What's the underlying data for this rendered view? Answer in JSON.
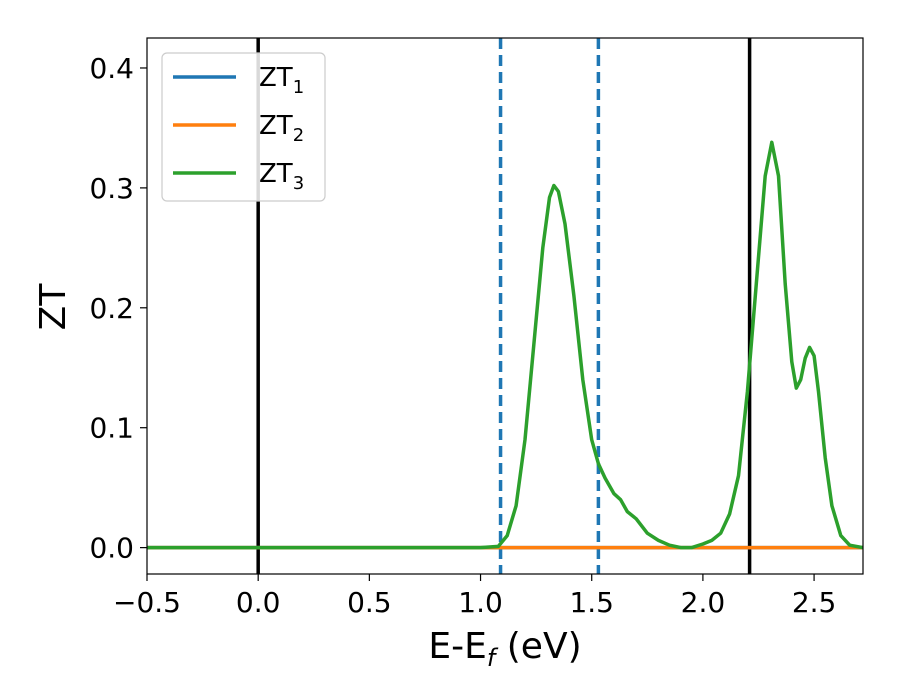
{
  "chart_data": {
    "type": "line",
    "xlabel": "E-E",
    "xlabel_sub": "f",
    "xlabel_unit": " (eV)",
    "ylabel": "ZT",
    "xlim": [
      -0.5,
      2.72
    ],
    "ylim": [
      -0.022,
      0.425
    ],
    "xticks": [
      -0.5,
      0.0,
      0.5,
      1.0,
      1.5,
      2.0,
      2.5
    ],
    "xtick_labels": [
      "−0.5",
      "0.0",
      "0.5",
      "1.0",
      "1.5",
      "2.0",
      "2.5"
    ],
    "yticks": [
      0.0,
      0.1,
      0.2,
      0.3,
      0.4
    ],
    "ytick_labels": [
      "0.0",
      "0.1",
      "0.2",
      "0.3",
      "0.4"
    ],
    "legend_position": "upper-left",
    "series": [
      {
        "name": "ZT",
        "name_sub": "1",
        "color": "#1f77b4",
        "x": [
          -0.5,
          2.72
        ],
        "y": [
          0.0,
          0.0
        ]
      },
      {
        "name": "ZT",
        "name_sub": "2",
        "color": "#ff7f0e",
        "x": [
          -0.5,
          2.72
        ],
        "y": [
          0.0,
          0.0
        ]
      },
      {
        "name": "ZT",
        "name_sub": "3",
        "color": "#2ca02c",
        "x": [
          -0.5,
          1.0,
          1.08,
          1.12,
          1.16,
          1.2,
          1.24,
          1.28,
          1.31,
          1.33,
          1.35,
          1.38,
          1.42,
          1.46,
          1.5,
          1.53,
          1.56,
          1.6,
          1.63,
          1.66,
          1.7,
          1.75,
          1.8,
          1.85,
          1.9,
          1.95,
          2.0,
          2.04,
          2.08,
          2.12,
          2.16,
          2.2,
          2.24,
          2.28,
          2.31,
          2.34,
          2.37,
          2.4,
          2.42,
          2.44,
          2.46,
          2.48,
          2.5,
          2.52,
          2.55,
          2.58,
          2.62,
          2.66,
          2.72
        ],
        "y": [
          0.0,
          0.0,
          0.001,
          0.01,
          0.035,
          0.09,
          0.17,
          0.25,
          0.292,
          0.302,
          0.297,
          0.27,
          0.21,
          0.14,
          0.09,
          0.07,
          0.058,
          0.045,
          0.04,
          0.03,
          0.024,
          0.012,
          0.006,
          0.002,
          0.0,
          0.0,
          0.003,
          0.006,
          0.012,
          0.028,
          0.06,
          0.13,
          0.22,
          0.31,
          0.338,
          0.31,
          0.22,
          0.155,
          0.133,
          0.14,
          0.158,
          0.167,
          0.16,
          0.13,
          0.075,
          0.035,
          0.01,
          0.002,
          0.0
        ]
      }
    ],
    "vlines": [
      {
        "x": 0.0,
        "style": "solid",
        "color": "#000000"
      },
      {
        "x": 1.09,
        "style": "dashed",
        "color": "#1f77b4"
      },
      {
        "x": 1.53,
        "style": "dashed",
        "color": "#1f77b4"
      },
      {
        "x": 2.21,
        "style": "solid",
        "color": "#000000"
      }
    ]
  }
}
